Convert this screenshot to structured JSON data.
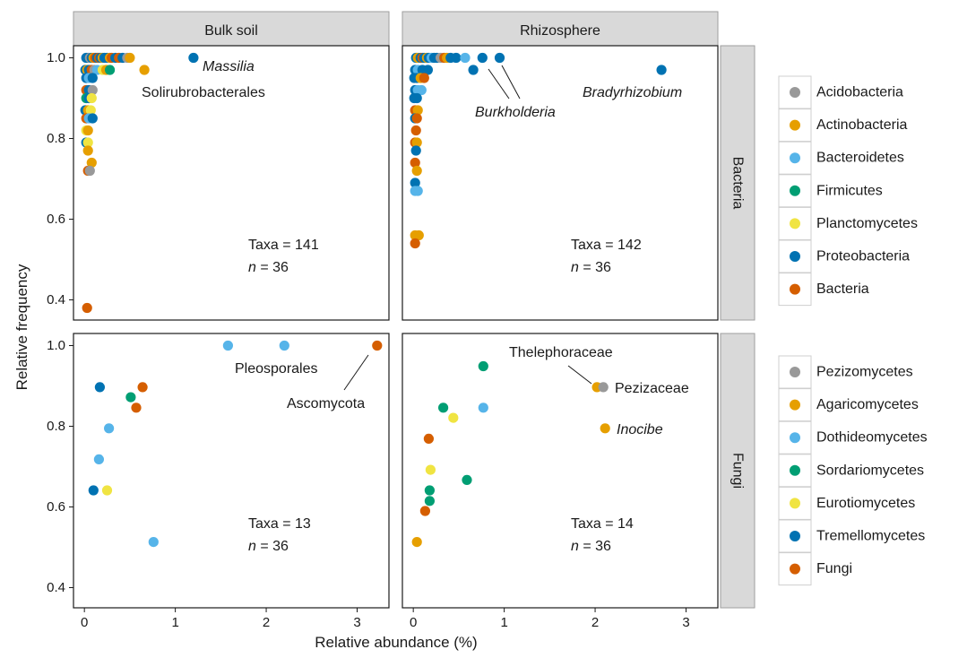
{
  "chart_data": {
    "type": "scatter",
    "xlabel": "Relative abundance (%)",
    "ylabel": "Relative frequency",
    "x_ticks": [
      "0",
      "1",
      "2",
      "3"
    ],
    "x_tick_values": [
      0,
      1,
      2,
      3
    ],
    "xlim": [
      -0.12,
      3.35
    ],
    "columns": [
      "Bulk soil",
      "Rhizosphere"
    ],
    "rows": [
      "Bacteria",
      "Fungi"
    ],
    "rows_y": {
      "Bacteria": {
        "ylim": [
          0.35,
          1.03
        ],
        "ticks": [
          0.4,
          0.6,
          0.8,
          1.0
        ],
        "tick_labels": [
          "0.4",
          "0.6",
          "0.8",
          "1.0"
        ]
      },
      "Fungi": {
        "ylim": [
          0.35,
          1.03
        ],
        "ticks": [
          0.4,
          0.6,
          0.8,
          1.0
        ],
        "tick_labels": [
          "0.4",
          "0.6",
          "0.8",
          "1.0"
        ]
      }
    },
    "grid": false,
    "legend_position": "right",
    "legends": {
      "Bacteria": [
        {
          "name": "Acidobacteria",
          "color": "#999999"
        },
        {
          "name": "Actinobacteria",
          "color": "#E69F00"
        },
        {
          "name": "Bacteroidetes",
          "color": "#56B4E9"
        },
        {
          "name": "Firmicutes",
          "color": "#009E73"
        },
        {
          "name": "Planctomycetes",
          "color": "#F0E442"
        },
        {
          "name": "Proteobacteria",
          "color": "#0072B2"
        },
        {
          "name": "Bacteria",
          "color": "#D55E00"
        }
      ],
      "Fungi": [
        {
          "name": "Pezizomycetes",
          "color": "#999999"
        },
        {
          "name": "Agaricomycetes",
          "color": "#E69F00"
        },
        {
          "name": "Dothideomycetes",
          "color": "#56B4E9"
        },
        {
          "name": "Sordariomycetes",
          "color": "#009E73"
        },
        {
          "name": "Eurotiomycetes",
          "color": "#F0E442"
        },
        {
          "name": "Tremellomycetes",
          "color": "#0072B2"
        },
        {
          "name": "Fungi",
          "color": "#D55E00"
        }
      ]
    },
    "panels": [
      {
        "row": "Bacteria",
        "column": "Bulk soil",
        "taxa_label": "Taxa = 141",
        "n_prefix": "n",
        "n_value": " = 36",
        "annotations": [
          {
            "text": "Massilia",
            "italic": true
          },
          {
            "text": "Solirubrobacterales",
            "italic": false
          }
        ],
        "points": [
          [
            0.02,
            1.0,
            "Proteobacteria"
          ],
          [
            0.04,
            1.0,
            "Proteobacteria"
          ],
          [
            0.06,
            1.0,
            "Acidobacteria"
          ],
          [
            0.08,
            1.0,
            "Proteobacteria"
          ],
          [
            0.1,
            1.0,
            "Actinobacteria"
          ],
          [
            0.12,
            1.0,
            "Bacteria"
          ],
          [
            0.14,
            1.0,
            "Proteobacteria"
          ],
          [
            0.16,
            1.0,
            "Bacteria"
          ],
          [
            0.18,
            1.0,
            "Proteobacteria"
          ],
          [
            0.2,
            1.0,
            "Actinobacteria"
          ],
          [
            0.22,
            1.0,
            "Proteobacteria"
          ],
          [
            0.25,
            1.0,
            "Proteobacteria"
          ],
          [
            0.28,
            1.0,
            "Actinobacteria"
          ],
          [
            0.3,
            1.0,
            "Bacteria"
          ],
          [
            0.34,
            1.0,
            "Proteobacteria"
          ],
          [
            0.38,
            1.0,
            "Bacteria"
          ],
          [
            0.42,
            1.0,
            "Proteobacteria"
          ],
          [
            0.47,
            1.0,
            "Acidobacteria"
          ],
          [
            0.5,
            1.0,
            "Actinobacteria"
          ],
          [
            1.2,
            1.0,
            "Proteobacteria"
          ],
          [
            0.01,
            0.97,
            "Proteobacteria"
          ],
          [
            0.03,
            0.97,
            "Actinobacteria"
          ],
          [
            0.05,
            0.97,
            "Proteobacteria"
          ],
          [
            0.08,
            0.97,
            "Bacteria"
          ],
          [
            0.11,
            0.97,
            "Acidobacteria"
          ],
          [
            0.14,
            0.97,
            "Bacteroidetes"
          ],
          [
            0.2,
            0.97,
            "Planctomycetes"
          ],
          [
            0.24,
            0.97,
            "Actinobacteria"
          ],
          [
            0.28,
            0.97,
            "Firmicutes"
          ],
          [
            0.66,
            0.97,
            "Actinobacteria"
          ],
          [
            0.02,
            0.95,
            "Proteobacteria"
          ],
          [
            0.05,
            0.95,
            "Bacteroidetes"
          ],
          [
            0.09,
            0.95,
            "Proteobacteria"
          ],
          [
            0.02,
            0.92,
            "Bacteria"
          ],
          [
            0.05,
            0.92,
            "Proteobacteria"
          ],
          [
            0.09,
            0.92,
            "Acidobacteria"
          ],
          [
            0.02,
            0.9,
            "Firmicutes"
          ],
          [
            0.05,
            0.9,
            "Proteobacteria"
          ],
          [
            0.08,
            0.9,
            "Planctomycetes"
          ],
          [
            0.01,
            0.87,
            "Proteobacteria"
          ],
          [
            0.04,
            0.87,
            "Actinobacteria"
          ],
          [
            0.07,
            0.87,
            "Planctomycetes"
          ],
          [
            0.02,
            0.85,
            "Bacteria"
          ],
          [
            0.05,
            0.85,
            "Bacteroidetes"
          ],
          [
            0.09,
            0.85,
            "Proteobacteria"
          ],
          [
            0.02,
            0.82,
            "Planctomycetes"
          ],
          [
            0.04,
            0.82,
            "Actinobacteria"
          ],
          [
            0.02,
            0.79,
            "Proteobacteria"
          ],
          [
            0.04,
            0.79,
            "Planctomycetes"
          ],
          [
            0.04,
            0.77,
            "Actinobacteria"
          ],
          [
            0.08,
            0.74,
            "Actinobacteria"
          ],
          [
            0.04,
            0.72,
            "Bacteria"
          ],
          [
            0.06,
            0.72,
            "Acidobacteria"
          ],
          [
            0.03,
            0.38,
            "Bacteria"
          ]
        ]
      },
      {
        "row": "Bacteria",
        "column": "Rhizosphere",
        "taxa_label": "Taxa = 142",
        "n_prefix": "n",
        "n_value": " = 36",
        "annotations": [
          {
            "text": "Bradyrhizobium",
            "italic": true
          },
          {
            "text": "Burkholderia",
            "italic": true
          }
        ],
        "points": [
          [
            0.03,
            1.0,
            "Proteobacteria"
          ],
          [
            0.05,
            1.0,
            "Actinobacteria"
          ],
          [
            0.08,
            1.0,
            "Proteobacteria"
          ],
          [
            0.1,
            1.0,
            "Bacteria"
          ],
          [
            0.12,
            1.0,
            "Proteobacteria"
          ],
          [
            0.15,
            1.0,
            "Actinobacteria"
          ],
          [
            0.17,
            1.0,
            "Proteobacteria"
          ],
          [
            0.2,
            1.0,
            "Bacteroidetes"
          ],
          [
            0.23,
            1.0,
            "Proteobacteria"
          ],
          [
            0.26,
            1.0,
            "Proteobacteria"
          ],
          [
            0.3,
            1.0,
            "Acidobacteria"
          ],
          [
            0.34,
            1.0,
            "Bacteria"
          ],
          [
            0.37,
            1.0,
            "Actinobacteria"
          ],
          [
            0.41,
            1.0,
            "Proteobacteria"
          ],
          [
            0.47,
            1.0,
            "Proteobacteria"
          ],
          [
            0.57,
            1.0,
            "Bacteroidetes"
          ],
          [
            0.76,
            1.0,
            "Proteobacteria"
          ],
          [
            0.95,
            1.0,
            "Proteobacteria"
          ],
          [
            0.02,
            0.97,
            "Proteobacteria"
          ],
          [
            0.05,
            0.97,
            "Bacteroidetes"
          ],
          [
            0.1,
            0.97,
            "Proteobacteria"
          ],
          [
            0.16,
            0.97,
            "Proteobacteria"
          ],
          [
            0.66,
            0.97,
            "Proteobacteria"
          ],
          [
            2.73,
            0.97,
            "Proteobacteria"
          ],
          [
            0.01,
            0.95,
            "Proteobacteria"
          ],
          [
            0.04,
            0.95,
            "Proteobacteria"
          ],
          [
            0.08,
            0.95,
            "Actinobacteria"
          ],
          [
            0.12,
            0.95,
            "Bacteria"
          ],
          [
            0.02,
            0.92,
            "Proteobacteria"
          ],
          [
            0.05,
            0.92,
            "Bacteroidetes"
          ],
          [
            0.09,
            0.92,
            "Bacteroidetes"
          ],
          [
            0.01,
            0.9,
            "Proteobacteria"
          ],
          [
            0.04,
            0.9,
            "Proteobacteria"
          ],
          [
            0.02,
            0.87,
            "Bacteria"
          ],
          [
            0.05,
            0.87,
            "Actinobacteria"
          ],
          [
            0.02,
            0.85,
            "Proteobacteria"
          ],
          [
            0.04,
            0.85,
            "Bacteria"
          ],
          [
            0.03,
            0.82,
            "Bacteria"
          ],
          [
            0.02,
            0.79,
            "Bacteria"
          ],
          [
            0.04,
            0.79,
            "Actinobacteria"
          ],
          [
            0.03,
            0.77,
            "Proteobacteria"
          ],
          [
            0.02,
            0.74,
            "Bacteria"
          ],
          [
            0.04,
            0.72,
            "Actinobacteria"
          ],
          [
            0.02,
            0.69,
            "Proteobacteria"
          ],
          [
            0.02,
            0.67,
            "Bacteroidetes"
          ],
          [
            0.05,
            0.67,
            "Bacteroidetes"
          ],
          [
            0.02,
            0.56,
            "Actinobacteria"
          ],
          [
            0.06,
            0.56,
            "Actinobacteria"
          ],
          [
            0.02,
            0.54,
            "Bacteria"
          ]
        ]
      },
      {
        "row": "Fungi",
        "column": "Bulk soil",
        "taxa_label": "Taxa = 13",
        "n_prefix": "n",
        "n_value": " = 36",
        "annotations": [
          {
            "text": "Pleosporales",
            "italic": false
          },
          {
            "text": "Ascomycota",
            "italic": false
          }
        ],
        "points": [
          [
            1.58,
            1.0,
            "Dothideomycetes"
          ],
          [
            2.2,
            1.0,
            "Dothideomycetes"
          ],
          [
            3.22,
            1.0,
            "Fungi"
          ],
          [
            0.17,
            0.897,
            "Tremellomycetes"
          ],
          [
            0.64,
            0.897,
            "Fungi"
          ],
          [
            0.51,
            0.872,
            "Sordariomycetes"
          ],
          [
            0.57,
            0.846,
            "Fungi"
          ],
          [
            0.27,
            0.795,
            "Dothideomycetes"
          ],
          [
            0.16,
            0.718,
            "Dothideomycetes"
          ],
          [
            0.1,
            0.641,
            "Tremellomycetes"
          ],
          [
            0.25,
            0.641,
            "Eurotiomycetes"
          ],
          [
            0.76,
            0.513,
            "Dothideomycetes"
          ]
        ]
      },
      {
        "row": "Fungi",
        "column": "Rhizosphere",
        "taxa_label": "Taxa = 14",
        "n_prefix": "n",
        "n_value": " = 36",
        "annotations": [
          {
            "text": "Thelephoraceae",
            "italic": false
          },
          {
            "text": "Pezizaceae",
            "italic": false
          },
          {
            "text": "Inocibe",
            "italic": true
          }
        ],
        "points": [
          [
            0.77,
            0.949,
            "Sordariomycetes"
          ],
          [
            2.02,
            0.897,
            "Agaricomycetes"
          ],
          [
            2.09,
            0.897,
            "Pezizomycetes"
          ],
          [
            0.33,
            0.846,
            "Sordariomycetes"
          ],
          [
            0.77,
            0.846,
            "Dothideomycetes"
          ],
          [
            0.44,
            0.821,
            "Eurotiomycetes"
          ],
          [
            2.11,
            0.795,
            "Agaricomycetes"
          ],
          [
            0.17,
            0.769,
            "Fungi"
          ],
          [
            0.19,
            0.692,
            "Eurotiomycetes"
          ],
          [
            0.59,
            0.667,
            "Sordariomycetes"
          ],
          [
            0.18,
            0.641,
            "Sordariomycetes"
          ],
          [
            0.18,
            0.615,
            "Sordariomycetes"
          ],
          [
            0.13,
            0.59,
            "Fungi"
          ],
          [
            0.04,
            0.513,
            "Agaricomycetes"
          ]
        ]
      }
    ]
  }
}
